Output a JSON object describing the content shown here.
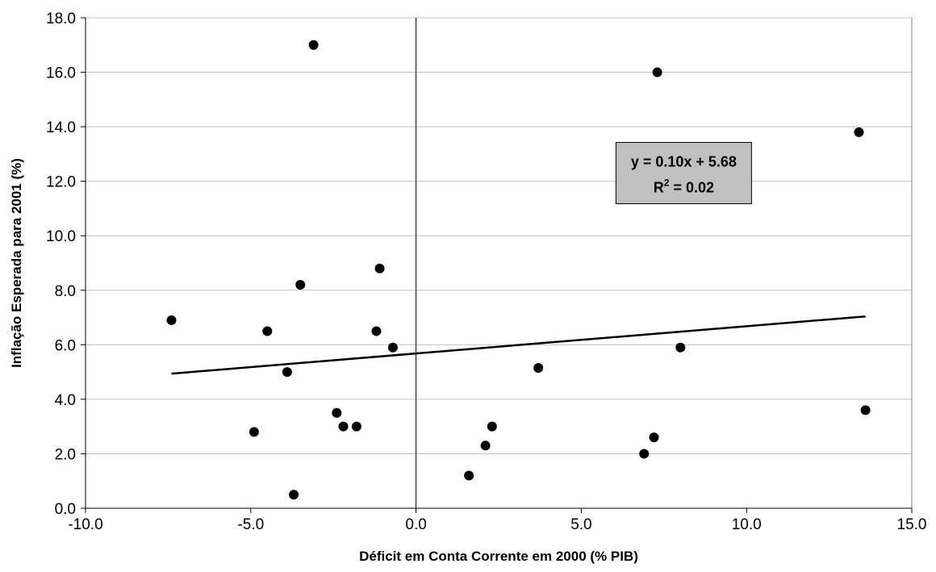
{
  "chart_data": {
    "type": "scatter",
    "title": "",
    "xlabel": "Déficit em Conta Corrente em 2000 (% PIB)",
    "ylabel": "Inflação Esperada para 2001 (%)",
    "xlim": [
      -10,
      15
    ],
    "ylim": [
      0,
      18
    ],
    "x_ticks": [
      "-10.0",
      "-5.0",
      "0.0",
      "5.0",
      "10.0",
      "15.0"
    ],
    "y_ticks": [
      "0.0",
      "2.0",
      "4.0",
      "6.0",
      "8.0",
      "10.0",
      "12.0",
      "14.0",
      "16.0",
      "18.0"
    ],
    "grid": "horizontal",
    "series": [
      {
        "points": [
          {
            "x": -7.4,
            "y": 6.9
          },
          {
            "x": -4.9,
            "y": 2.8
          },
          {
            "x": -4.5,
            "y": 6.5
          },
          {
            "x": -3.9,
            "y": 5.0
          },
          {
            "x": -3.7,
            "y": 0.5
          },
          {
            "x": -3.5,
            "y": 8.2
          },
          {
            "x": -3.1,
            "y": 17.0
          },
          {
            "x": -2.4,
            "y": 3.5
          },
          {
            "x": -2.2,
            "y": 3.0
          },
          {
            "x": -1.8,
            "y": 3.0
          },
          {
            "x": -1.2,
            "y": 6.5
          },
          {
            "x": -1.1,
            "y": 8.8
          },
          {
            "x": -0.7,
            "y": 5.9
          },
          {
            "x": 1.6,
            "y": 1.2
          },
          {
            "x": 2.1,
            "y": 2.3
          },
          {
            "x": 2.3,
            "y": 3.0
          },
          {
            "x": 3.7,
            "y": 5.15
          },
          {
            "x": 6.9,
            "y": 2.0
          },
          {
            "x": 7.2,
            "y": 2.6
          },
          {
            "x": 7.3,
            "y": 16.0
          },
          {
            "x": 8.0,
            "y": 5.9
          },
          {
            "x": 13.4,
            "y": 13.8
          },
          {
            "x": 13.6,
            "y": 3.6
          }
        ]
      }
    ],
    "trendline": {
      "slope": 0.1,
      "intercept": 5.68,
      "x_range": [
        -7.4,
        13.6
      ]
    },
    "annotation": {
      "equation": "y = 0.10x + 5.68",
      "r2_prefix": "R",
      "r2_sup": "2",
      "r2_suffix": " = 0.02",
      "x": 8.1,
      "y": 12.3
    },
    "colors": {
      "marker": "#000000",
      "trendline": "#000000",
      "gridline": "#c0c0c0",
      "annotation_fill": "#c0c0c0",
      "annotation_border": "#000000"
    }
  }
}
